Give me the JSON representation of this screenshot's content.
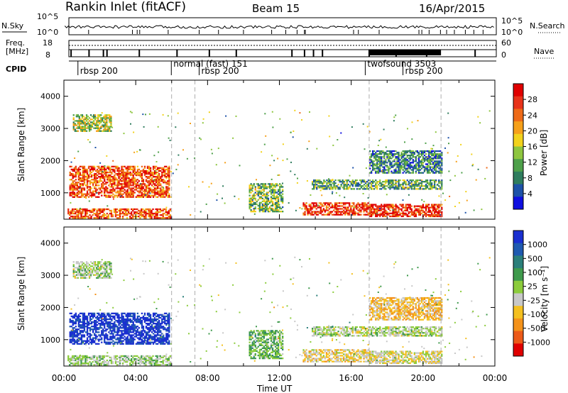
{
  "header": {
    "station": "Rankin Inlet (fitACF)",
    "beam": "Beam 15",
    "date": "16/Apr/2015"
  },
  "noise_panel": {
    "left_label": "N.Sky",
    "right_label": "N.Search",
    "left_ticks": [
      "10^5",
      "10^0"
    ],
    "right_ticks": [
      "10^5",
      "10^0"
    ]
  },
  "freq_panel": {
    "left_label_line1": "Freq.",
    "left_label_line2": "[MHz]",
    "right_label": "Nave",
    "left_ticks": [
      "18",
      "8"
    ],
    "right_ticks": [
      "60",
      "0"
    ]
  },
  "cpid_panel": {
    "label": "CPID",
    "entries": [
      {
        "text": "rbsp 200",
        "t": 0.9
      },
      {
        "text": "normal (fast) 151",
        "t": 6.1
      },
      {
        "text": "rbsp 200",
        "t": 7.65
      },
      {
        "text": "twofsound 3503",
        "t": 16.9
      },
      {
        "text": "rbsp 200",
        "t": 19.0
      }
    ]
  },
  "power_panel": {
    "ylabel": "Slant Range [km]",
    "yticks": [
      "4000",
      "3000",
      "2000",
      "1000"
    ],
    "colorbar_label": "Power [dB]",
    "colorbar_ticks": [
      "28",
      "24",
      "20",
      "16",
      "12",
      "8",
      "4"
    ],
    "colors": [
      "#1010e0",
      "#1d52a8",
      "#2f7d5e",
      "#4ea04a",
      "#8ec63f",
      "#f2d21c",
      "#f6a01a",
      "#ee6a18",
      "#e8331a",
      "#e00000"
    ]
  },
  "velocity_panel": {
    "ylabel": "Slant Range [km]",
    "yticks": [
      "4000",
      "3000",
      "2000",
      "1000"
    ],
    "colorbar_label": "Velocity [m s⁻¹]",
    "colorbar_ticks": [
      "1000",
      "500",
      "100",
      "25",
      "-25",
      "-100",
      "-500",
      "-1000"
    ],
    "colors": [
      "#1a2fd0",
      "#1f5ab0",
      "#2b7f7a",
      "#3f9a4c",
      "#8ccc3c",
      "#c8c8c8",
      "#f4c020",
      "#f4921a",
      "#ec5a18",
      "#e00000"
    ]
  },
  "xaxis": {
    "label": "Time UT",
    "ticks": [
      "00:00",
      "04:00",
      "08:00",
      "12:00",
      "16:00",
      "20:00",
      "00:00"
    ]
  },
  "chart_data": {
    "type": "heatmap",
    "title": "Rankin Inlet (fitACF)  Beam 15  16/Apr/2015",
    "xlabel": "Time UT",
    "ylabel": "Slant Range [km]",
    "x_range_hours": [
      0,
      24
    ],
    "y_range_km": [
      180,
      4500
    ],
    "mode_change_times_hours": [
      6.0,
      7.3,
      17.0,
      21.0
    ],
    "power_scale_db": [
      0,
      30
    ],
    "velocity_scale_ms": [
      -1000,
      1000
    ],
    "echo_regions": [
      {
        "t0": 0.2,
        "t1": 5.9,
        "r0": 200,
        "r1": 500,
        "power_db": 24,
        "velocity_ms": 60
      },
      {
        "t0": 0.3,
        "t1": 5.9,
        "r0": 850,
        "r1": 1800,
        "power_db": 24,
        "velocity_ms": 900
      },
      {
        "t0": 0.5,
        "t1": 2.6,
        "r0": 2900,
        "r1": 3400,
        "power_db": 14,
        "velocity_ms": 20
      },
      {
        "t0": 10.3,
        "t1": 12.2,
        "r0": 400,
        "r1": 1300,
        "power_db": 12,
        "velocity_ms": 200
      },
      {
        "t0": 13.3,
        "t1": 17.0,
        "r0": 300,
        "r1": 700,
        "power_db": 26,
        "velocity_ms": -200
      },
      {
        "t0": 17.0,
        "t1": 21.0,
        "r0": 250,
        "r1": 650,
        "power_db": 26,
        "velocity_ms": -150
      },
      {
        "t0": 13.8,
        "t1": 21.0,
        "r0": 1100,
        "r1": 1400,
        "power_db": 10,
        "velocity_ms": 0
      },
      {
        "t0": 17.0,
        "t1": 21.0,
        "r0": 1600,
        "r1": 2300,
        "power_db": 8,
        "velocity_ms": -300
      }
    ]
  }
}
